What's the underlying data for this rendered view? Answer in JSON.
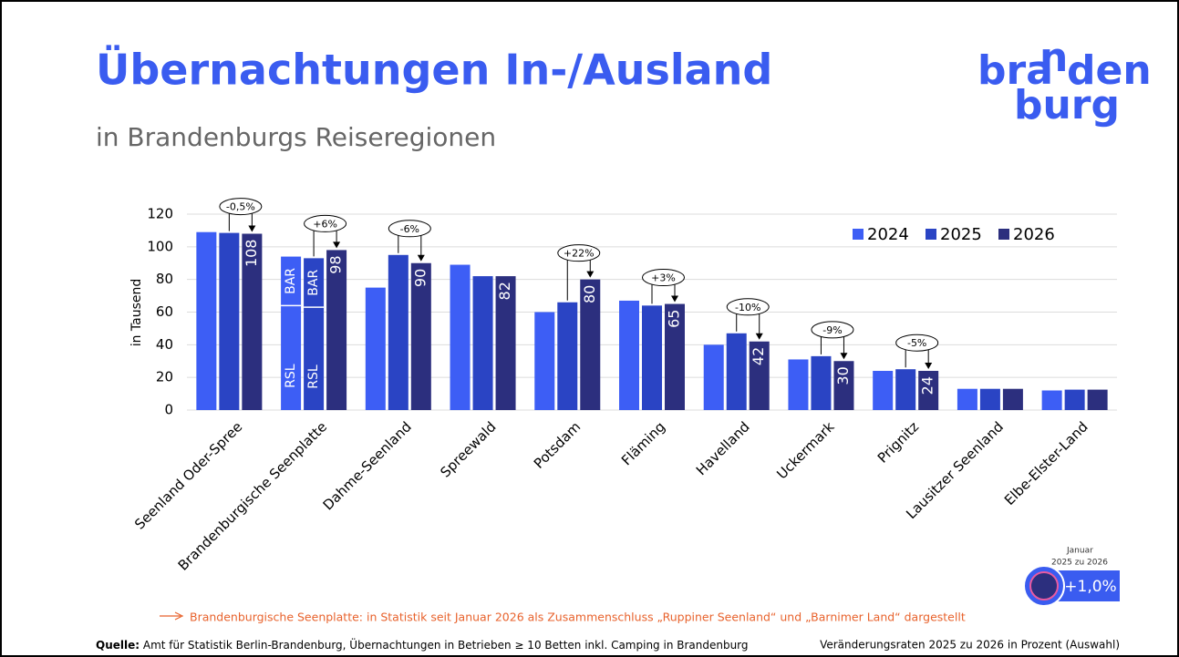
{
  "chart_data": {
    "type": "bar",
    "title": "Übernachtungen In-/Ausland",
    "subtitle": "in Brandenburgs Reiseregionen",
    "logo": [
      "bra",
      "n",
      "den",
      "burg"
    ],
    "y_label": "in Tausend",
    "categories": [
      "Seenland Oder-Spree",
      "Brandenburgische Seenplatte",
      "Dahme-Seenland",
      "Spreewald",
      "Potsdam",
      "Fläming",
      "Havelland",
      "Uckermark",
      "Prignitz",
      "Lausitzer Seenland",
      "Elbe-Elster-Land"
    ],
    "series": [
      {
        "name": "2024",
        "color": "#3d5ef5",
        "values": [
          109,
          94,
          75,
          89,
          60,
          67,
          40,
          31,
          24,
          13,
          12
        ],
        "split": [
          null,
          64,
          null,
          null,
          null,
          null,
          null,
          null,
          null,
          null,
          null
        ]
      },
      {
        "name": "2025",
        "color": "#2a44c4",
        "values": [
          108.5,
          93,
          95,
          82,
          66,
          64,
          47,
          33,
          25,
          13,
          12.5
        ],
        "split": [
          null,
          63,
          null,
          null,
          null,
          null,
          null,
          null,
          null,
          null,
          null
        ]
      },
      {
        "name": "2026",
        "color": "#2c2f7e",
        "values": [
          108,
          98,
          90,
          82,
          80,
          65,
          42,
          30,
          24,
          13,
          12.5
        ],
        "value_labels": [
          "108",
          "98",
          "90",
          "82",
          "80",
          "65",
          "42",
          "30",
          "24",
          null,
          null
        ]
      }
    ],
    "split_names": [
      "RSL",
      "BAR"
    ],
    "change_labels": [
      "-0,5%",
      "+6%",
      "-6%",
      null,
      "+22%",
      "+3%",
      "-10%",
      "-9%",
      "-5%",
      null,
      null
    ],
    "ylim": [
      0,
      120
    ],
    "yticks": [
      0,
      20,
      40,
      60,
      80,
      100,
      120
    ],
    "grid": true,
    "legend": "top-right",
    "footnote": "Brandenburgische Seenplatte: in Statistik seit Januar 2026 als Zusammenschluss „Ruppiner Seenland“ und „Barnimer Land“ dargestellt",
    "source_label": "Quelle:",
    "source": "Amt für Statistik Berlin-Brandenburg, Übernachtungen in Betrieben ≥ 10 Betten inkl. Camping in Brandenburg",
    "rates_note": "Veränderungsraten 2025 zu 2026 in Prozent (Auswahl)",
    "badge": {
      "line1": "Januar",
      "line2": "2025 zu 2026",
      "value": "+1,0%"
    }
  }
}
